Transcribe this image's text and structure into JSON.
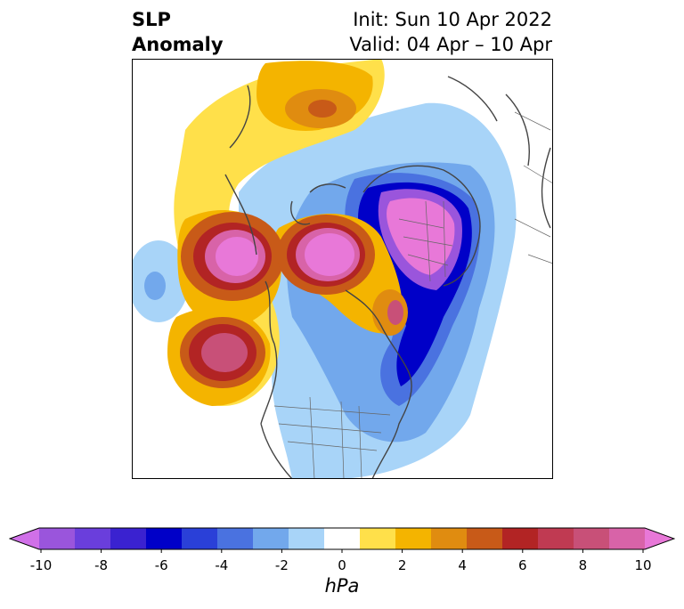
{
  "title": {
    "line1": "SLP",
    "line2": "Anomaly"
  },
  "dates": {
    "init": "Init: Sun 10 Apr 2022",
    "valid": "Valid: 04 Apr – 10 Apr"
  },
  "colorbar": {
    "unit": "hPa",
    "ticks": [
      "-10",
      "-8",
      "-6",
      "-4",
      "-2",
      "0",
      "2",
      "4",
      "6",
      "8",
      "10"
    ],
    "colors": [
      "#d070e8",
      "#9a55dc",
      "#6a3edc",
      "#3a22d0",
      "#0000c8",
      "#2a40d8",
      "#4a72e0",
      "#72a8ec",
      "#a8d4f8",
      "#ffffff",
      "#ffe04a",
      "#f4b400",
      "#e08c10",
      "#c85a18",
      "#b22424",
      "#c03a52",
      "#c85078",
      "#d863a8",
      "#e878d8"
    ],
    "colors_note": ""
  }
}
